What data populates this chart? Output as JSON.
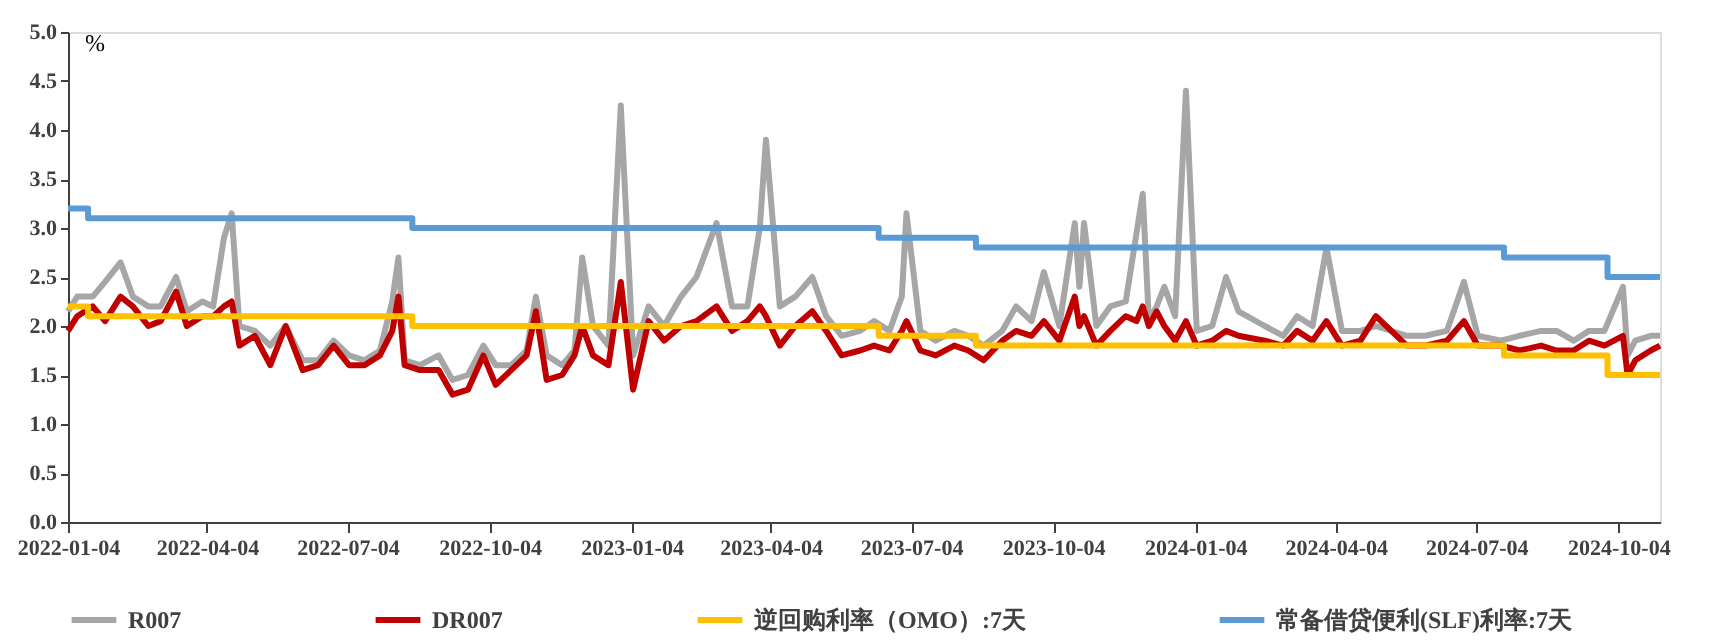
{
  "chart_data": {
    "type": "line",
    "ylabel": "%",
    "legend": "bottom",
    "grid": false,
    "line_style": "solid",
    "marker": "none",
    "xlim": [
      "2022-01-04",
      "2024-10-31"
    ],
    "xticks": [
      "2022-01-04",
      "2022-04-04",
      "2022-07-04",
      "2022-10-04",
      "2023-01-04",
      "2023-04-04",
      "2023-07-04",
      "2023-10-04",
      "2024-01-04",
      "2024-04-04",
      "2024-07-04",
      "2024-10-04"
    ],
    "ylim": [
      0,
      5
    ],
    "yticks": [
      {
        "value": 0,
        "label": "0.0"
      },
      {
        "value": 0.5,
        "label": "0.5"
      },
      {
        "value": 1,
        "label": "1.0"
      },
      {
        "value": 1.5,
        "label": "1.5"
      },
      {
        "value": 2,
        "label": "2.0"
      },
      {
        "value": 2.5,
        "label": "2.5"
      },
      {
        "value": 3,
        "label": "3.0"
      },
      {
        "value": 3.5,
        "label": "3.5"
      },
      {
        "value": 4,
        "label": "4.0"
      },
      {
        "value": 4.5,
        "label": "4.5"
      },
      {
        "value": 5,
        "label": "5.0"
      }
    ],
    "series": [
      {
        "name": "R007",
        "color": "#a6a6a6",
        "x": [
          "2022-01-04",
          "2022-01-10",
          "2022-01-20",
          "2022-01-28",
          "2022-02-07",
          "2022-02-15",
          "2022-02-25",
          "2022-03-05",
          "2022-03-15",
          "2022-03-22",
          "2022-04-01",
          "2022-04-08",
          "2022-04-15",
          "2022-04-20",
          "2022-04-25",
          "2022-05-05",
          "2022-05-15",
          "2022-05-25",
          "2022-06-05",
          "2022-06-15",
          "2022-06-25",
          "2022-07-05",
          "2022-07-15",
          "2022-07-25",
          "2022-08-02",
          "2022-08-06",
          "2022-08-10",
          "2022-08-20",
          "2022-09-01",
          "2022-09-10",
          "2022-09-20",
          "2022-09-30",
          "2022-10-08",
          "2022-10-18",
          "2022-10-28",
          "2022-11-03",
          "2022-11-10",
          "2022-11-20",
          "2022-11-28",
          "2022-12-03",
          "2022-12-10",
          "2022-12-20",
          "2022-12-28",
          "2023-01-05",
          "2023-01-15",
          "2023-01-25",
          "2023-02-05",
          "2023-02-15",
          "2023-02-28",
          "2023-03-10",
          "2023-03-20",
          "2023-03-28",
          "2023-04-01",
          "2023-04-10",
          "2023-04-20",
          "2023-05-01",
          "2023-05-10",
          "2023-05-20",
          "2023-06-01",
          "2023-06-10",
          "2023-06-20",
          "2023-06-28",
          "2023-07-01",
          "2023-07-10",
          "2023-07-20",
          "2023-08-01",
          "2023-08-10",
          "2023-08-20",
          "2023-09-01",
          "2023-09-10",
          "2023-09-20",
          "2023-09-28",
          "2023-10-08",
          "2023-10-18",
          "2023-10-21",
          "2023-10-24",
          "2023-11-01",
          "2023-11-10",
          "2023-11-20",
          "2023-11-27",
          "2023-12-01",
          "2023-12-05",
          "2023-12-10",
          "2023-12-15",
          "2023-12-22",
          "2023-12-29",
          "2024-01-05",
          "2024-01-15",
          "2024-01-24",
          "2024-02-01",
          "2024-02-18",
          "2024-03-01",
          "2024-03-10",
          "2024-03-20",
          "2024-03-29",
          "2024-04-08",
          "2024-04-20",
          "2024-04-30",
          "2024-05-20",
          "2024-06-01",
          "2024-06-15",
          "2024-06-26",
          "2024-07-05",
          "2024-07-20",
          "2024-08-01",
          "2024-08-15",
          "2024-08-25",
          "2024-09-05",
          "2024-09-15",
          "2024-09-25",
          "2024-10-07",
          "2024-10-10",
          "2024-10-15",
          "2024-10-25",
          "2024-10-31"
        ],
        "values": [
          2.15,
          2.3,
          2.3,
          2.45,
          2.65,
          2.3,
          2.2,
          2.2,
          2.5,
          2.15,
          2.25,
          2.2,
          2.9,
          3.15,
          2.0,
          1.95,
          1.8,
          2.0,
          1.65,
          1.65,
          1.85,
          1.7,
          1.65,
          1.75,
          2.25,
          2.7,
          1.65,
          1.6,
          1.7,
          1.45,
          1.5,
          1.8,
          1.6,
          1.6,
          1.75,
          2.3,
          1.7,
          1.6,
          1.75,
          2.7,
          2.0,
          1.8,
          4.25,
          1.7,
          2.2,
          2.0,
          2.3,
          2.5,
          3.05,
          2.2,
          2.2,
          3.0,
          3.9,
          2.2,
          2.3,
          2.5,
          2.1,
          1.9,
          1.95,
          2.05,
          1.95,
          2.3,
          3.15,
          1.95,
          1.85,
          1.95,
          1.9,
          1.8,
          1.95,
          2.2,
          2.05,
          2.55,
          2.0,
          3.05,
          2.4,
          3.05,
          2.0,
          2.2,
          2.25,
          2.95,
          3.35,
          2.05,
          2.2,
          2.4,
          2.1,
          4.4,
          1.95,
          2.0,
          2.5,
          2.15,
          2.0,
          1.9,
          2.1,
          2.0,
          2.8,
          1.95,
          1.95,
          2.0,
          1.9,
          1.9,
          1.95,
          2.45,
          1.9,
          1.85,
          1.9,
          1.95,
          1.95,
          1.85,
          1.95,
          1.95,
          2.4,
          1.7,
          1.85,
          1.9,
          1.9
        ]
      },
      {
        "name": "DR007",
        "color": "#c00000",
        "x": [
          "2022-01-04",
          "2022-01-10",
          "2022-01-20",
          "2022-01-28",
          "2022-02-07",
          "2022-02-15",
          "2022-02-25",
          "2022-03-05",
          "2022-03-15",
          "2022-03-22",
          "2022-04-01",
          "2022-04-08",
          "2022-04-15",
          "2022-04-20",
          "2022-04-25",
          "2022-05-05",
          "2022-05-15",
          "2022-05-25",
          "2022-06-05",
          "2022-06-15",
          "2022-06-25",
          "2022-07-05",
          "2022-07-15",
          "2022-07-25",
          "2022-08-02",
          "2022-08-06",
          "2022-08-10",
          "2022-08-20",
          "2022-09-01",
          "2022-09-10",
          "2022-09-20",
          "2022-09-30",
          "2022-10-08",
          "2022-10-18",
          "2022-10-28",
          "2022-11-03",
          "2022-11-10",
          "2022-11-20",
          "2022-11-28",
          "2022-12-03",
          "2022-12-10",
          "2022-12-20",
          "2022-12-28",
          "2023-01-05",
          "2023-01-15",
          "2023-01-25",
          "2023-02-05",
          "2023-02-15",
          "2023-02-28",
          "2023-03-10",
          "2023-03-20",
          "2023-03-28",
          "2023-04-01",
          "2023-04-10",
          "2023-04-20",
          "2023-05-01",
          "2023-05-10",
          "2023-05-20",
          "2023-06-01",
          "2023-06-10",
          "2023-06-20",
          "2023-06-28",
          "2023-07-01",
          "2023-07-10",
          "2023-07-20",
          "2023-08-01",
          "2023-08-10",
          "2023-08-20",
          "2023-09-01",
          "2023-09-10",
          "2023-09-20",
          "2023-09-28",
          "2023-10-08",
          "2023-10-18",
          "2023-10-21",
          "2023-10-24",
          "2023-11-01",
          "2023-11-10",
          "2023-11-20",
          "2023-11-27",
          "2023-12-01",
          "2023-12-05",
          "2023-12-10",
          "2023-12-15",
          "2023-12-22",
          "2023-12-29",
          "2024-01-05",
          "2024-01-15",
          "2024-01-24",
          "2024-02-01",
          "2024-02-18",
          "2024-03-01",
          "2024-03-10",
          "2024-03-20",
          "2024-03-29",
          "2024-04-08",
          "2024-04-20",
          "2024-04-30",
          "2024-05-20",
          "2024-06-01",
          "2024-06-15",
          "2024-06-26",
          "2024-07-05",
          "2024-07-20",
          "2024-08-01",
          "2024-08-15",
          "2024-08-25",
          "2024-09-05",
          "2024-09-15",
          "2024-09-25",
          "2024-10-07",
          "2024-10-10",
          "2024-10-15",
          "2024-10-25",
          "2024-10-31"
        ],
        "values": [
          1.95,
          2.1,
          2.2,
          2.05,
          2.3,
          2.2,
          2.0,
          2.05,
          2.35,
          2.0,
          2.1,
          2.1,
          2.2,
          2.25,
          1.8,
          1.9,
          1.6,
          2.0,
          1.55,
          1.6,
          1.8,
          1.6,
          1.6,
          1.7,
          1.95,
          2.3,
          1.6,
          1.55,
          1.55,
          1.3,
          1.35,
          1.7,
          1.4,
          1.55,
          1.7,
          2.15,
          1.45,
          1.5,
          1.7,
          2.0,
          1.7,
          1.6,
          2.45,
          1.35,
          2.05,
          1.85,
          2.0,
          2.05,
          2.2,
          1.95,
          2.05,
          2.2,
          2.1,
          1.8,
          2.0,
          2.15,
          1.95,
          1.7,
          1.75,
          1.8,
          1.75,
          1.95,
          2.05,
          1.75,
          1.7,
          1.8,
          1.75,
          1.65,
          1.85,
          1.95,
          1.9,
          2.05,
          1.85,
          2.3,
          2.0,
          2.1,
          1.8,
          1.95,
          2.1,
          2.05,
          2.2,
          2.0,
          2.15,
          2.0,
          1.85,
          2.05,
          1.8,
          1.85,
          1.95,
          1.9,
          1.85,
          1.8,
          1.95,
          1.85,
          2.05,
          1.8,
          1.85,
          2.1,
          1.8,
          1.8,
          1.85,
          2.05,
          1.8,
          1.8,
          1.75,
          1.8,
          1.75,
          1.75,
          1.85,
          1.8,
          1.9,
          1.5,
          1.65,
          1.75,
          1.8
        ]
      },
      {
        "name": "逆回购利率（OMO）:7天",
        "color": "#ffc000",
        "type": "step",
        "x": [
          "2022-01-04",
          "2022-01-17",
          "2022-08-15",
          "2023-06-13",
          "2023-08-15",
          "2024-07-22",
          "2024-09-27",
          "2024-10-31"
        ],
        "values": [
          2.2,
          2.1,
          2.0,
          1.9,
          1.8,
          1.7,
          1.5,
          1.5
        ]
      },
      {
        "name": "常备借贷便利(SLF)利率:7天",
        "color": "#5b9bd5",
        "type": "step",
        "x": [
          "2022-01-04",
          "2022-01-17",
          "2022-08-15",
          "2023-06-13",
          "2023-08-15",
          "2024-07-22",
          "2024-09-27",
          "2024-10-31"
        ],
        "values": [
          3.2,
          3.1,
          3.0,
          2.9,
          2.8,
          2.7,
          2.5,
          2.5
        ]
      }
    ]
  }
}
